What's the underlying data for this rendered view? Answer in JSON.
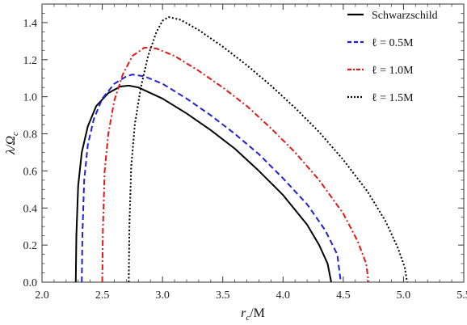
{
  "chart_data": {
    "type": "line",
    "xlabel": "r_c/M",
    "ylabel": "λ/Ω_c",
    "xlim": [
      2.0,
      5.5
    ],
    "ylim": [
      0.0,
      1.5
    ],
    "x_ticks": [
      "2.0",
      "2.5",
      "3.0",
      "3.5",
      "4.0",
      "4.5",
      "5.0",
      "5.5"
    ],
    "y_ticks": [
      "0.0",
      "0.2",
      "0.4",
      "0.6",
      "0.8",
      "1.0",
      "1.2",
      "1.4"
    ],
    "grid": false,
    "legend_position": "top-right",
    "series": [
      {
        "name": "Schwarzschild",
        "style": "solid",
        "color": "#000000",
        "points": [
          [
            2.28,
            0.0
          ],
          [
            2.285,
            0.25
          ],
          [
            2.3,
            0.52
          ],
          [
            2.33,
            0.7
          ],
          [
            2.38,
            0.84
          ],
          [
            2.45,
            0.95
          ],
          [
            2.55,
            1.02
          ],
          [
            2.65,
            1.055
          ],
          [
            2.72,
            1.06
          ],
          [
            2.8,
            1.05
          ],
          [
            3.0,
            0.99
          ],
          [
            3.2,
            0.91
          ],
          [
            3.4,
            0.82
          ],
          [
            3.6,
            0.72
          ],
          [
            3.8,
            0.6
          ],
          [
            4.0,
            0.47
          ],
          [
            4.2,
            0.31
          ],
          [
            4.3,
            0.2
          ],
          [
            4.37,
            0.1
          ],
          [
            4.4,
            0.0
          ]
        ]
      },
      {
        "name": "ℓ = 0.5M",
        "style": "dashed",
        "color": "#1f1fdc",
        "points": [
          [
            2.33,
            0.0
          ],
          [
            2.335,
            0.25
          ],
          [
            2.35,
            0.55
          ],
          [
            2.38,
            0.74
          ],
          [
            2.43,
            0.88
          ],
          [
            2.5,
            0.99
          ],
          [
            2.6,
            1.07
          ],
          [
            2.7,
            1.11
          ],
          [
            2.75,
            1.12
          ],
          [
            2.85,
            1.11
          ],
          [
            3.0,
            1.07
          ],
          [
            3.2,
            0.99
          ],
          [
            3.4,
            0.9
          ],
          [
            3.6,
            0.8
          ],
          [
            3.8,
            0.69
          ],
          [
            4.0,
            0.56
          ],
          [
            4.2,
            0.42
          ],
          [
            4.35,
            0.28
          ],
          [
            4.45,
            0.15
          ],
          [
            4.48,
            0.0
          ]
        ]
      },
      {
        "name": "ℓ = 1.0M",
        "style": "dashdot",
        "color": "#e01818",
        "points": [
          [
            2.5,
            0.0
          ],
          [
            2.505,
            0.28
          ],
          [
            2.52,
            0.6
          ],
          [
            2.55,
            0.8
          ],
          [
            2.6,
            0.98
          ],
          [
            2.67,
            1.12
          ],
          [
            2.75,
            1.22
          ],
          [
            2.85,
            1.265
          ],
          [
            2.95,
            1.26
          ],
          [
            3.1,
            1.22
          ],
          [
            3.3,
            1.14
          ],
          [
            3.5,
            1.05
          ],
          [
            3.7,
            0.95
          ],
          [
            3.9,
            0.83
          ],
          [
            4.1,
            0.7
          ],
          [
            4.3,
            0.55
          ],
          [
            4.5,
            0.37
          ],
          [
            4.62,
            0.22
          ],
          [
            4.69,
            0.1
          ],
          [
            4.71,
            0.0
          ]
        ]
      },
      {
        "name": "ℓ = 1.5M",
        "style": "dotted",
        "color": "#000000",
        "points": [
          [
            2.72,
            0.0
          ],
          [
            2.725,
            0.3
          ],
          [
            2.74,
            0.62
          ],
          [
            2.77,
            0.85
          ],
          [
            2.82,
            1.05
          ],
          [
            2.88,
            1.22
          ],
          [
            2.95,
            1.35
          ],
          [
            3.0,
            1.41
          ],
          [
            3.05,
            1.43
          ],
          [
            3.15,
            1.415
          ],
          [
            3.3,
            1.36
          ],
          [
            3.5,
            1.27
          ],
          [
            3.7,
            1.17
          ],
          [
            3.9,
            1.06
          ],
          [
            4.1,
            0.94
          ],
          [
            4.3,
            0.81
          ],
          [
            4.5,
            0.66
          ],
          [
            4.7,
            0.49
          ],
          [
            4.85,
            0.33
          ],
          [
            4.95,
            0.19
          ],
          [
            5.01,
            0.08
          ],
          [
            5.03,
            0.0
          ]
        ]
      }
    ]
  }
}
